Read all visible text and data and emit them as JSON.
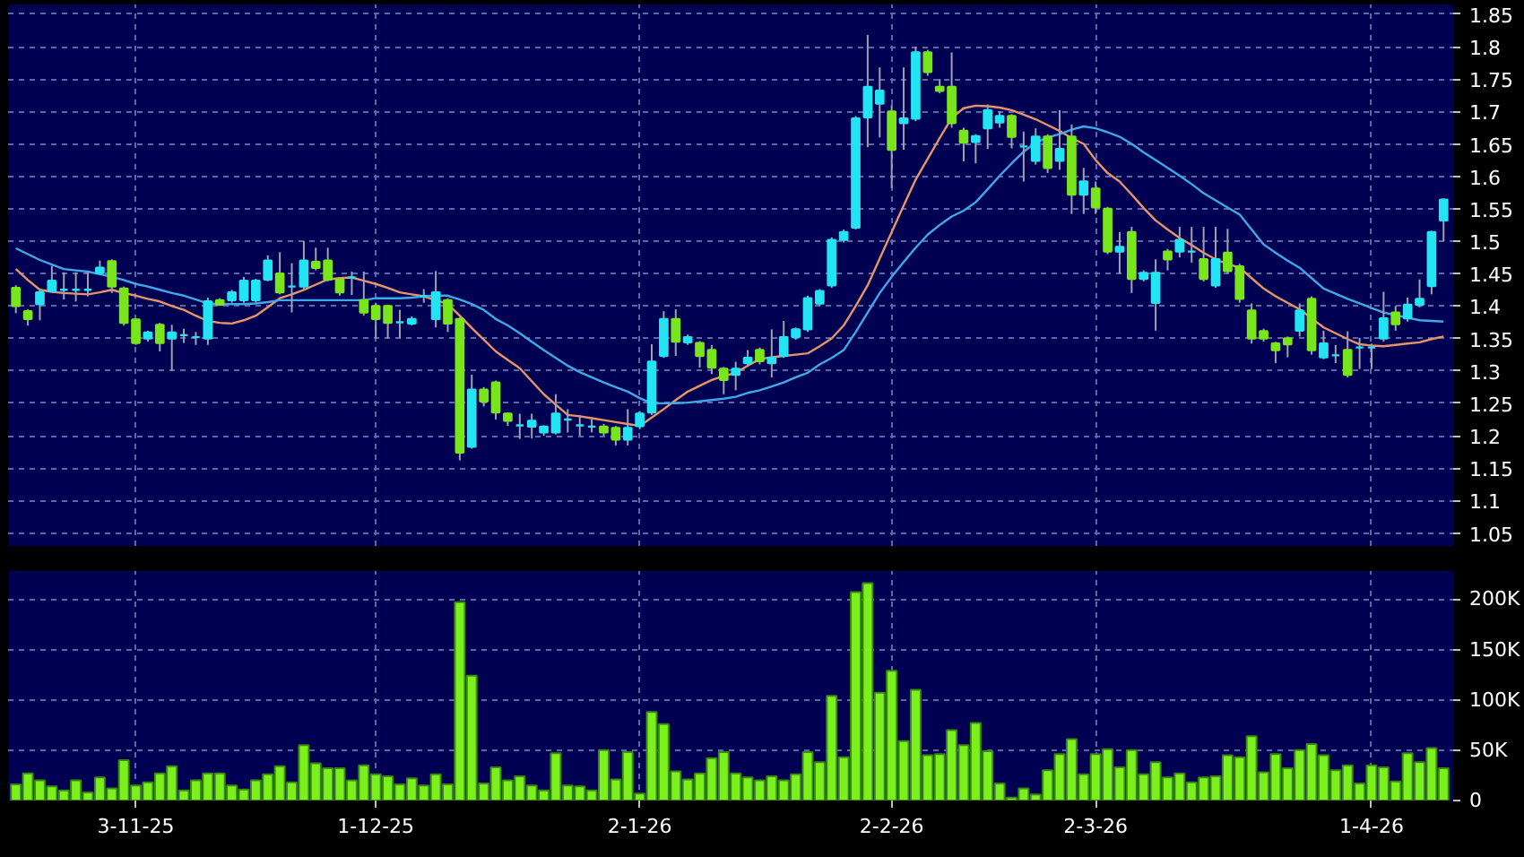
{
  "chart_data": [
    {
      "type": "candlestick",
      "tick_labels": "y",
      "grid": true,
      "ylim": [
        1.03,
        1.865
      ],
      "yticks": [
        1.05,
        1.1,
        1.15,
        1.2,
        1.25,
        1.3,
        1.35,
        1.4,
        1.45,
        1.5,
        1.55,
        1.6,
        1.65,
        1.7,
        1.75,
        1.8,
        1.85
      ],
      "categories": [
        null,
        null,
        null,
        null,
        null,
        null,
        null,
        null,
        null,
        null,
        null,
        null,
        null,
        null,
        null,
        null,
        null,
        null,
        null,
        null,
        null,
        null,
        null,
        null,
        null,
        null,
        null,
        null,
        null,
        null,
        null,
        null,
        null,
        null,
        null,
        null,
        null,
        null,
        null,
        null,
        null,
        null,
        null,
        null,
        null,
        null,
        null,
        null,
        null,
        null,
        null,
        null,
        null,
        null,
        null,
        null,
        null,
        null,
        null,
        null,
        null,
        null,
        null,
        null,
        null,
        null,
        null,
        null,
        null,
        null,
        null,
        null,
        null,
        null,
        null,
        null,
        null,
        null,
        null,
        null,
        null,
        null,
        null,
        null,
        null,
        null,
        null,
        null,
        null,
        null,
        null,
        null,
        null,
        null,
        null,
        null,
        null,
        null,
        null,
        null,
        null,
        null,
        null,
        null,
        null,
        null,
        null,
        null,
        null,
        null,
        null,
        null,
        null,
        null,
        null,
        null,
        null,
        null,
        null,
        null
      ],
      "ohlc": [
        [
          1.428,
          1.432,
          1.389,
          1.4
        ],
        [
          1.392,
          1.395,
          1.37,
          1.38
        ],
        [
          1.403,
          1.427,
          1.378,
          1.421
        ],
        [
          1.423,
          1.462,
          1.42,
          1.439
        ],
        [
          1.425,
          1.452,
          1.41,
          1.425
        ],
        [
          1.425,
          1.452,
          1.407,
          1.425
        ],
        [
          1.425,
          1.452,
          1.415,
          1.425
        ],
        [
          1.451,
          1.47,
          1.448,
          1.459
        ],
        [
          1.469,
          1.472,
          1.42,
          1.43
        ],
        [
          1.427,
          1.43,
          1.37,
          1.374
        ],
        [
          1.379,
          1.38,
          1.34,
          1.343
        ],
        [
          1.35,
          1.362,
          1.345,
          1.359
        ],
        [
          1.371,
          1.374,
          1.33,
          1.343
        ],
        [
          1.35,
          1.371,
          1.3,
          1.359
        ],
        [
          1.355,
          1.365,
          1.343,
          1.355
        ],
        [
          1.352,
          1.36,
          1.34,
          1.352
        ],
        [
          1.35,
          1.413,
          1.34,
          1.407
        ],
        [
          1.409,
          1.412,
          1.4,
          1.402
        ],
        [
          1.409,
          1.425,
          1.405,
          1.421
        ],
        [
          1.409,
          1.445,
          1.405,
          1.439
        ],
        [
          1.409,
          1.442,
          1.405,
          1.439
        ],
        [
          1.441,
          1.478,
          1.438,
          1.47
        ],
        [
          1.45,
          1.483,
          1.418,
          1.421
        ],
        [
          1.43,
          1.466,
          1.39,
          1.43
        ],
        [
          1.43,
          1.5,
          1.425,
          1.47
        ],
        [
          1.468,
          1.49,
          1.455,
          1.459
        ],
        [
          1.47,
          1.49,
          1.438,
          1.441
        ],
        [
          1.441,
          1.444,
          1.416,
          1.421
        ],
        [
          1.444,
          1.453,
          1.417,
          1.444
        ],
        [
          1.409,
          1.453,
          1.385,
          1.39
        ],
        [
          1.4,
          1.405,
          1.35,
          1.38
        ],
        [
          1.4,
          1.402,
          1.35,
          1.374
        ],
        [
          1.375,
          1.394,
          1.35,
          1.375
        ],
        [
          1.373,
          1.384,
          1.37,
          1.38
        ],
        [
          1.415,
          1.426,
          1.405,
          1.415
        ],
        [
          1.38,
          1.454,
          1.367,
          1.421
        ],
        [
          1.409,
          1.412,
          1.36,
          1.373
        ],
        [
          1.38,
          1.383,
          1.162,
          1.174
        ],
        [
          1.183,
          1.294,
          1.18,
          1.271
        ],
        [
          1.271,
          1.275,
          1.245,
          1.253
        ],
        [
          1.282,
          1.285,
          1.225,
          1.236
        ],
        [
          1.234,
          1.236,
          1.215,
          1.223
        ],
        [
          1.216,
          1.234,
          1.195,
          1.216
        ],
        [
          1.214,
          1.234,
          1.196,
          1.223
        ],
        [
          1.205,
          1.216,
          1.2,
          1.214
        ],
        [
          1.205,
          1.264,
          1.202,
          1.234
        ],
        [
          1.225,
          1.241,
          1.205,
          1.225
        ],
        [
          1.216,
          1.232,
          1.2,
          1.216
        ],
        [
          1.214,
          1.225,
          1.205,
          1.214
        ],
        [
          1.214,
          1.218,
          1.2,
          1.205
        ],
        [
          1.212,
          1.215,
          1.185,
          1.194
        ],
        [
          1.194,
          1.241,
          1.185,
          1.212
        ],
        [
          1.215,
          1.238,
          1.21,
          1.234
        ],
        [
          1.236,
          1.341,
          1.232,
          1.314
        ],
        [
          1.323,
          1.392,
          1.32,
          1.38
        ],
        [
          1.38,
          1.395,
          1.323,
          1.345
        ],
        [
          1.344,
          1.356,
          1.34,
          1.352
        ],
        [
          1.343,
          1.346,
          1.305,
          1.323
        ],
        [
          1.332,
          1.34,
          1.295,
          1.305
        ],
        [
          1.303,
          1.306,
          1.264,
          1.286
        ],
        [
          1.294,
          1.314,
          1.27,
          1.303
        ],
        [
          1.312,
          1.332,
          1.308,
          1.32
        ],
        [
          1.332,
          1.336,
          1.31,
          1.315
        ],
        [
          1.312,
          1.364,
          1.29,
          1.32
        ],
        [
          1.323,
          1.377,
          1.32,
          1.352
        ],
        [
          1.352,
          1.367,
          1.348,
          1.364
        ],
        [
          1.364,
          1.416,
          1.36,
          1.412
        ],
        [
          1.404,
          1.426,
          1.4,
          1.423
        ],
        [
          1.432,
          1.506,
          1.428,
          1.502
        ],
        [
          1.502,
          1.518,
          1.498,
          1.514
        ],
        [
          1.521,
          1.693,
          1.518,
          1.689
        ],
        [
          1.691,
          1.818,
          1.645,
          1.738
        ],
        [
          1.712,
          1.768,
          1.66,
          1.732
        ],
        [
          1.7,
          1.71,
          1.582,
          1.641
        ],
        [
          1.682,
          1.768,
          1.641,
          1.689
        ],
        [
          1.689,
          1.8,
          1.685,
          1.791
        ],
        [
          1.791,
          1.795,
          1.755,
          1.761
        ],
        [
          1.738,
          1.75,
          1.728,
          1.732
        ],
        [
          1.738,
          1.791,
          1.675,
          1.682
        ],
        [
          1.67,
          1.675,
          1.623,
          1.652
        ],
        [
          1.653,
          1.665,
          1.62,
          1.662
        ],
        [
          1.674,
          1.711,
          1.642,
          1.702
        ],
        [
          1.683,
          1.7,
          1.675,
          1.693
        ],
        [
          1.693,
          1.696,
          1.643,
          1.661
        ],
        [
          1.646,
          1.669,
          1.592,
          1.646
        ],
        [
          1.624,
          1.674,
          1.618,
          1.661
        ],
        [
          1.661,
          1.665,
          1.605,
          1.613
        ],
        [
          1.624,
          1.702,
          1.61,
          1.642
        ],
        [
          1.661,
          1.68,
          1.542,
          1.572
        ],
        [
          1.572,
          1.613,
          1.542,
          1.592
        ],
        [
          1.581,
          1.592,
          1.542,
          1.552
        ],
        [
          1.55,
          1.553,
          1.48,
          1.484
        ],
        [
          1.484,
          1.514,
          1.45,
          1.491
        ],
        [
          1.514,
          1.522,
          1.42,
          1.442
        ],
        [
          1.442,
          1.455,
          1.438,
          1.451
        ],
        [
          1.405,
          1.472,
          1.362,
          1.451
        ],
        [
          1.484,
          1.488,
          1.455,
          1.472
        ],
        [
          1.484,
          1.522,
          1.475,
          1.502
        ],
        [
          1.484,
          1.522,
          1.467,
          1.484
        ],
        [
          1.472,
          1.522,
          1.438,
          1.442
        ],
        [
          1.432,
          1.522,
          1.428,
          1.472
        ],
        [
          1.482,
          1.519,
          1.45,
          1.454
        ],
        [
          1.461,
          1.465,
          1.405,
          1.411
        ],
        [
          1.393,
          1.404,
          1.342,
          1.35
        ],
        [
          1.361,
          1.365,
          1.345,
          1.35
        ],
        [
          1.342,
          1.345,
          1.312,
          1.332
        ],
        [
          1.35,
          1.353,
          1.321,
          1.341
        ],
        [
          1.362,
          1.404,
          1.353,
          1.393
        ],
        [
          1.411,
          1.415,
          1.325,
          1.332
        ],
        [
          1.321,
          1.362,
          1.318,
          1.342
        ],
        [
          1.324,
          1.34,
          1.312,
          1.324
        ],
        [
          1.332,
          1.361,
          1.29,
          1.294
        ],
        [
          1.336,
          1.351,
          1.303,
          1.336
        ],
        [
          1.336,
          1.342,
          1.303,
          1.336
        ],
        [
          1.35,
          1.422,
          1.345,
          1.381
        ],
        [
          1.39,
          1.4,
          1.362,
          1.372
        ],
        [
          1.381,
          1.413,
          1.376,
          1.402
        ],
        [
          1.402,
          1.441,
          1.398,
          1.411
        ],
        [
          1.431,
          1.516,
          1.418,
          1.514
        ],
        [
          1.532,
          1.566,
          1.5,
          1.564
        ]
      ],
      "colors": [
        "#78e61a",
        "#78e61a",
        "#22e4f2",
        "#22e4f2",
        "#22e4f2",
        "#22e4f2",
        "#22e4f2",
        "#22e4f2",
        "#78e61a",
        "#78e61a",
        "#78e61a",
        "#22e4f2",
        "#78e61a",
        "#22e4f2",
        "#22e4f2",
        "#22e4f2",
        "#22e4f2",
        "#78e61a",
        "#22e4f2",
        "#22e4f2",
        "#22e4f2",
        "#22e4f2",
        "#78e61a",
        "#22e4f2",
        "#22e4f2",
        "#78e61a",
        "#78e61a",
        "#78e61a",
        "#22e4f2",
        "#78e61a",
        "#78e61a",
        "#78e61a",
        "#22e4f2",
        "#22e4f2",
        "#22e4f2",
        "#22e4f2",
        "#78e61a",
        "#78e61a",
        "#22e4f2",
        "#78e61a",
        "#78e61a",
        "#78e61a",
        "#22e4f2",
        "#22e4f2",
        "#22e4f2",
        "#22e4f2",
        "#22e4f2",
        "#22e4f2",
        "#22e4f2",
        "#78e61a",
        "#78e61a",
        "#22e4f2",
        "#22e4f2",
        "#22e4f2",
        "#22e4f2",
        "#78e61a",
        "#22e4f2",
        "#78e61a",
        "#78e61a",
        "#78e61a",
        "#22e4f2",
        "#22e4f2",
        "#78e61a",
        "#22e4f2",
        "#22e4f2",
        "#22e4f2",
        "#22e4f2",
        "#22e4f2",
        "#22e4f2",
        "#22e4f2",
        "#22e4f2",
        "#22e4f2",
        "#22e4f2",
        "#78e61a",
        "#22e4f2",
        "#22e4f2",
        "#78e61a",
        "#78e61a",
        "#78e61a",
        "#78e61a",
        "#22e4f2",
        "#22e4f2",
        "#22e4f2",
        "#78e61a",
        "#22e4f2",
        "#22e4f2",
        "#78e61a",
        "#22e4f2",
        "#78e61a",
        "#22e4f2",
        "#78e61a",
        "#78e61a",
        "#22e4f2",
        "#78e61a",
        "#22e4f2",
        "#22e4f2",
        "#78e61a",
        "#22e4f2",
        "#22e4f2",
        "#78e61a",
        "#22e4f2",
        "#78e61a",
        "#78e61a",
        "#78e61a",
        "#78e61a",
        "#78e61a",
        "#78e61a",
        "#22e4f2",
        "#78e61a",
        "#22e4f2",
        "#22e4f2",
        "#78e61a",
        "#22e4f2",
        "#22e4f2",
        "#22e4f2",
        "#78e61a",
        "#22e4f2",
        "#22e4f2",
        "#22e4f2",
        "#22e4f2"
      ],
      "series": [
        {
          "type": "line",
          "color": "#e8946a",
          "values": [
            1.457,
            1.44,
            1.425,
            1.422,
            1.42,
            1.419,
            1.418,
            1.421,
            1.425,
            1.42,
            1.416,
            1.411,
            1.407,
            1.4,
            1.394,
            1.385,
            1.377,
            1.374,
            1.373,
            1.378,
            1.385,
            1.398,
            1.412,
            1.418,
            1.425,
            1.433,
            1.441,
            1.443,
            1.444,
            1.439,
            1.434,
            1.428,
            1.421,
            1.418,
            1.415,
            1.409,
            1.403,
            1.385,
            1.366,
            1.348,
            1.33,
            1.317,
            1.304,
            1.284,
            1.264,
            1.248,
            1.232,
            1.23,
            1.227,
            1.224,
            1.221,
            1.218,
            1.215,
            1.228,
            1.241,
            1.255,
            1.268,
            1.277,
            1.286,
            1.292,
            1.297,
            1.308,
            1.318,
            1.321,
            1.323,
            1.325,
            1.327,
            1.338,
            1.35,
            1.37,
            1.4,
            1.432,
            1.473,
            1.514,
            1.555,
            1.595,
            1.627,
            1.659,
            1.69,
            1.705,
            1.709,
            1.708,
            1.706,
            1.702,
            1.695,
            1.688,
            1.679,
            1.67,
            1.659,
            1.65,
            1.625,
            1.605,
            1.592,
            1.572,
            1.551,
            1.532,
            1.518,
            1.505,
            1.494,
            1.482,
            1.472,
            1.465,
            1.459,
            1.443,
            1.427,
            1.415,
            1.405,
            1.395,
            1.381,
            1.367,
            1.358,
            1.349,
            1.341,
            1.339,
            1.338,
            1.34,
            1.342,
            1.344,
            1.349,
            1.353
          ]
        },
        {
          "type": "line",
          "color": "#40a8e8",
          "values": [
            1.489,
            1.48,
            1.471,
            1.464,
            1.457,
            1.455,
            1.453,
            1.449,
            1.445,
            1.44,
            1.434,
            1.43,
            1.425,
            1.42,
            1.416,
            1.41,
            1.404,
            1.403,
            1.403,
            1.403,
            1.404,
            1.406,
            1.409,
            1.409,
            1.409,
            1.409,
            1.409,
            1.409,
            1.409,
            1.409,
            1.412,
            1.412,
            1.412,
            1.413,
            1.415,
            1.416,
            1.416,
            1.41,
            1.403,
            1.394,
            1.38,
            1.37,
            1.358,
            1.345,
            1.332,
            1.32,
            1.308,
            1.298,
            1.29,
            1.282,
            1.275,
            1.268,
            1.258,
            1.25,
            1.25,
            1.25,
            1.251,
            1.253,
            1.255,
            1.257,
            1.26,
            1.266,
            1.27,
            1.276,
            1.282,
            1.29,
            1.297,
            1.31,
            1.32,
            1.332,
            1.36,
            1.39,
            1.42,
            1.445,
            1.468,
            1.49,
            1.51,
            1.525,
            1.538,
            1.547,
            1.56,
            1.58,
            1.601,
            1.62,
            1.638,
            1.652,
            1.66,
            1.665,
            1.672,
            1.677,
            1.674,
            1.668,
            1.661,
            1.65,
            1.637,
            1.625,
            1.613,
            1.601,
            1.588,
            1.574,
            1.563,
            1.552,
            1.541,
            1.518,
            1.495,
            1.482,
            1.47,
            1.459,
            1.443,
            1.427,
            1.419,
            1.411,
            1.404,
            1.397,
            1.39,
            1.386,
            1.382,
            1.378,
            1.377,
            1.376
          ]
        }
      ]
    },
    {
      "type": "bar",
      "grid": true,
      "ylim": [
        0,
        228000
      ],
      "yticks": [
        0,
        {
          "value": 50000,
          "label": "50K"
        },
        {
          "value": 100000,
          "label": "100K"
        },
        {
          "value": 150000,
          "label": "150K"
        },
        {
          "value": 200000,
          "label": "200K"
        }
      ],
      "categories": [
        null,
        null,
        null,
        null,
        null,
        null,
        null,
        null,
        null,
        null,
        "3-11-25",
        null,
        null,
        null,
        null,
        null,
        null,
        null,
        null,
        null,
        null,
        null,
        null,
        null,
        null,
        null,
        null,
        null,
        null,
        null,
        "1-12-25",
        null,
        null,
        null,
        null,
        null,
        null,
        null,
        null,
        null,
        null,
        null,
        null,
        null,
        null,
        null,
        null,
        null,
        null,
        null,
        null,
        null,
        "2-1-26",
        null,
        null,
        null,
        null,
        null,
        null,
        null,
        null,
        null,
        null,
        null,
        null,
        null,
        null,
        null,
        null,
        null,
        null,
        null,
        null,
        "2-2-26",
        null,
        null,
        null,
        null,
        null,
        null,
        null,
        null,
        null,
        null,
        null,
        null,
        null,
        null,
        null,
        null,
        "2-3-26",
        null,
        null,
        null,
        null,
        null,
        null,
        null,
        null,
        null,
        null,
        null,
        null,
        null,
        null,
        null,
        null,
        null,
        null,
        null,
        null,
        null,
        null,
        "1-4-26",
        null,
        null,
        null,
        null,
        null,
        null
      ],
      "series": [
        {
          "color": "#7cf01c",
          "values": [
            16000,
            27000,
            20000,
            14000,
            10000,
            20000,
            8000,
            23000,
            12000,
            40000,
            15000,
            18000,
            27000,
            34000,
            10000,
            20000,
            27000,
            27000,
            15000,
            11000,
            20000,
            26000,
            34000,
            18000,
            55000,
            37000,
            32000,
            32000,
            20000,
            35000,
            26000,
            24000,
            16000,
            22000,
            15000,
            26000,
            16000,
            197000,
            124000,
            17000,
            33000,
            20000,
            24000,
            15000,
            10000,
            47000,
            15000,
            14000,
            10000,
            50000,
            21000,
            48000,
            7000,
            88000,
            76000,
            29000,
            21000,
            27000,
            42000,
            48000,
            27000,
            23000,
            20000,
            24000,
            20000,
            26000,
            48000,
            38000,
            104000,
            43000,
            207000,
            216000,
            107000,
            129000,
            59000,
            110000,
            45000,
            46000,
            70000,
            55000,
            77000,
            49000,
            17000,
            3000,
            12000,
            6000,
            30000,
            46000,
            61000,
            26000,
            46000,
            51000,
            33000,
            50000,
            26000,
            38000,
            23000,
            27000,
            18000,
            23000,
            24000,
            45000,
            43000,
            64000,
            28000,
            46000,
            32000,
            50000,
            56000,
            45000,
            30000,
            35000,
            17000,
            35000,
            33000,
            19000,
            47000,
            38000,
            52000,
            32000
          ]
        }
      ]
    }
  ]
}
